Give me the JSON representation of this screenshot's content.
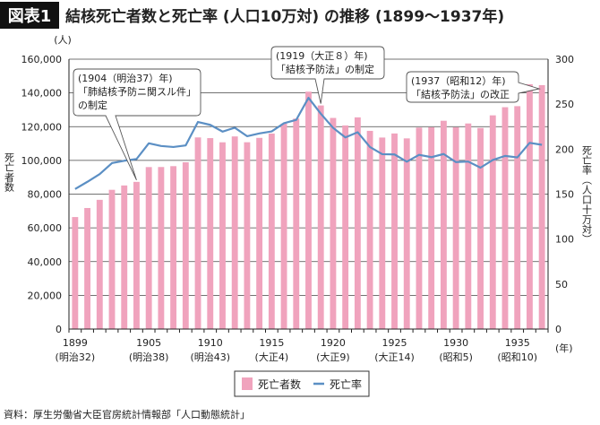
{
  "header": {
    "badge": "図表1",
    "title": "結核死亡者数と死亡率 (人口10万対) の推移 (1899〜1937年)"
  },
  "source": "資料：厚生労働省大臣官房統計情報部「人口動態統計」",
  "colors": {
    "bar": "#f0a3bd",
    "line": "#5b8fc4",
    "badge_bg": "#111111"
  },
  "chart_data": {
    "type": "bar+line",
    "title": "結核死亡者数と死亡率 (人口10万対) の推移 (1899〜1937年)",
    "x": [
      1899,
      1900,
      1901,
      1902,
      1903,
      1904,
      1905,
      1906,
      1907,
      1908,
      1909,
      1910,
      1911,
      1912,
      1913,
      1914,
      1915,
      1916,
      1917,
      1918,
      1919,
      1920,
      1921,
      1922,
      1923,
      1924,
      1925,
      1926,
      1927,
      1928,
      1929,
      1930,
      1931,
      1932,
      1933,
      1934,
      1935,
      1936,
      1937
    ],
    "x_tick_labels": [
      {
        "year": 1899,
        "label": "1899",
        "era": "(明治32)"
      },
      {
        "year": 1905,
        "label": "1905",
        "era": "(明治38)"
      },
      {
        "year": 1910,
        "label": "1910",
        "era": "(明治43)"
      },
      {
        "year": 1915,
        "label": "1915",
        "era": "(大正4)"
      },
      {
        "year": 1920,
        "label": "1920",
        "era": "(大正9)"
      },
      {
        "year": 1925,
        "label": "1925",
        "era": "(大正14)"
      },
      {
        "year": 1930,
        "label": "1930",
        "era": "(昭和5)"
      },
      {
        "year": 1935,
        "label": "1935",
        "era": "(昭和10)"
      }
    ],
    "x_unit": "(年)",
    "series": [
      {
        "name": "死亡者数",
        "type": "bar",
        "axis": "left",
        "values": [
          66408,
          71771,
          76614,
          82559,
          85132,
          87260,
          96030,
          96069,
          96584,
          98871,
          113622,
          113203,
          110722,
          114197,
          110753,
          113341,
          115913,
          121810,
          124787,
          140747,
          132565,
          125165,
          120719,
          125506,
          117500,
          113542,
          115956,
          113045,
          119439,
          119632,
          123490,
          119635,
          121875,
          119196,
          126703,
          131525,
          132151,
          145160,
          144620
        ]
      },
      {
        "name": "死亡率",
        "type": "line",
        "axis": "right",
        "values": [
          155.7,
          163.7,
          172.2,
          184.5,
          187.1,
          189.0,
          206.5,
          203.5,
          202.4,
          204.1,
          230.2,
          227.0,
          219.5,
          223.8,
          214.4,
          217.5,
          219.7,
          228.8,
          232.5,
          257.1,
          239.4,
          223.7,
          213.0,
          218.8,
          202.4,
          194.4,
          194.1,
          186.1,
          193.7,
          191.1,
          194.6,
          185.6,
          186.2,
          179.4,
          187.9,
          192.5,
          190.8,
          207.0,
          204.8
        ]
      }
    ],
    "y_left": {
      "label": "死亡者数",
      "unit": "(人)",
      "range": [
        0,
        160000
      ],
      "ticks": [
        "0",
        "20,000",
        "40,000",
        "60,000",
        "80,000",
        "100,000",
        "120,000",
        "140,000",
        "160,000"
      ]
    },
    "y_right": {
      "label": "死亡率（人口十万対）",
      "range": [
        0,
        300
      ],
      "ticks": [
        "0",
        "50",
        "100",
        "150",
        "200",
        "250",
        "300"
      ]
    },
    "grid": true,
    "legend": {
      "position": "bottom",
      "items": [
        "死亡者数",
        "死亡率"
      ]
    },
    "annotations": [
      {
        "year": 1904,
        "lines": [
          "(1904（明治37）年)",
          "「肺結核予防ニ関スル件」",
          "の制定"
        ]
      },
      {
        "year": 1919,
        "lines": [
          "(1919（大正８）年)",
          "「結核予防法」の制定"
        ]
      },
      {
        "year": 1937,
        "lines": [
          "(1937（昭和12）年)",
          "「結核予防法」の改正"
        ]
      }
    ]
  }
}
